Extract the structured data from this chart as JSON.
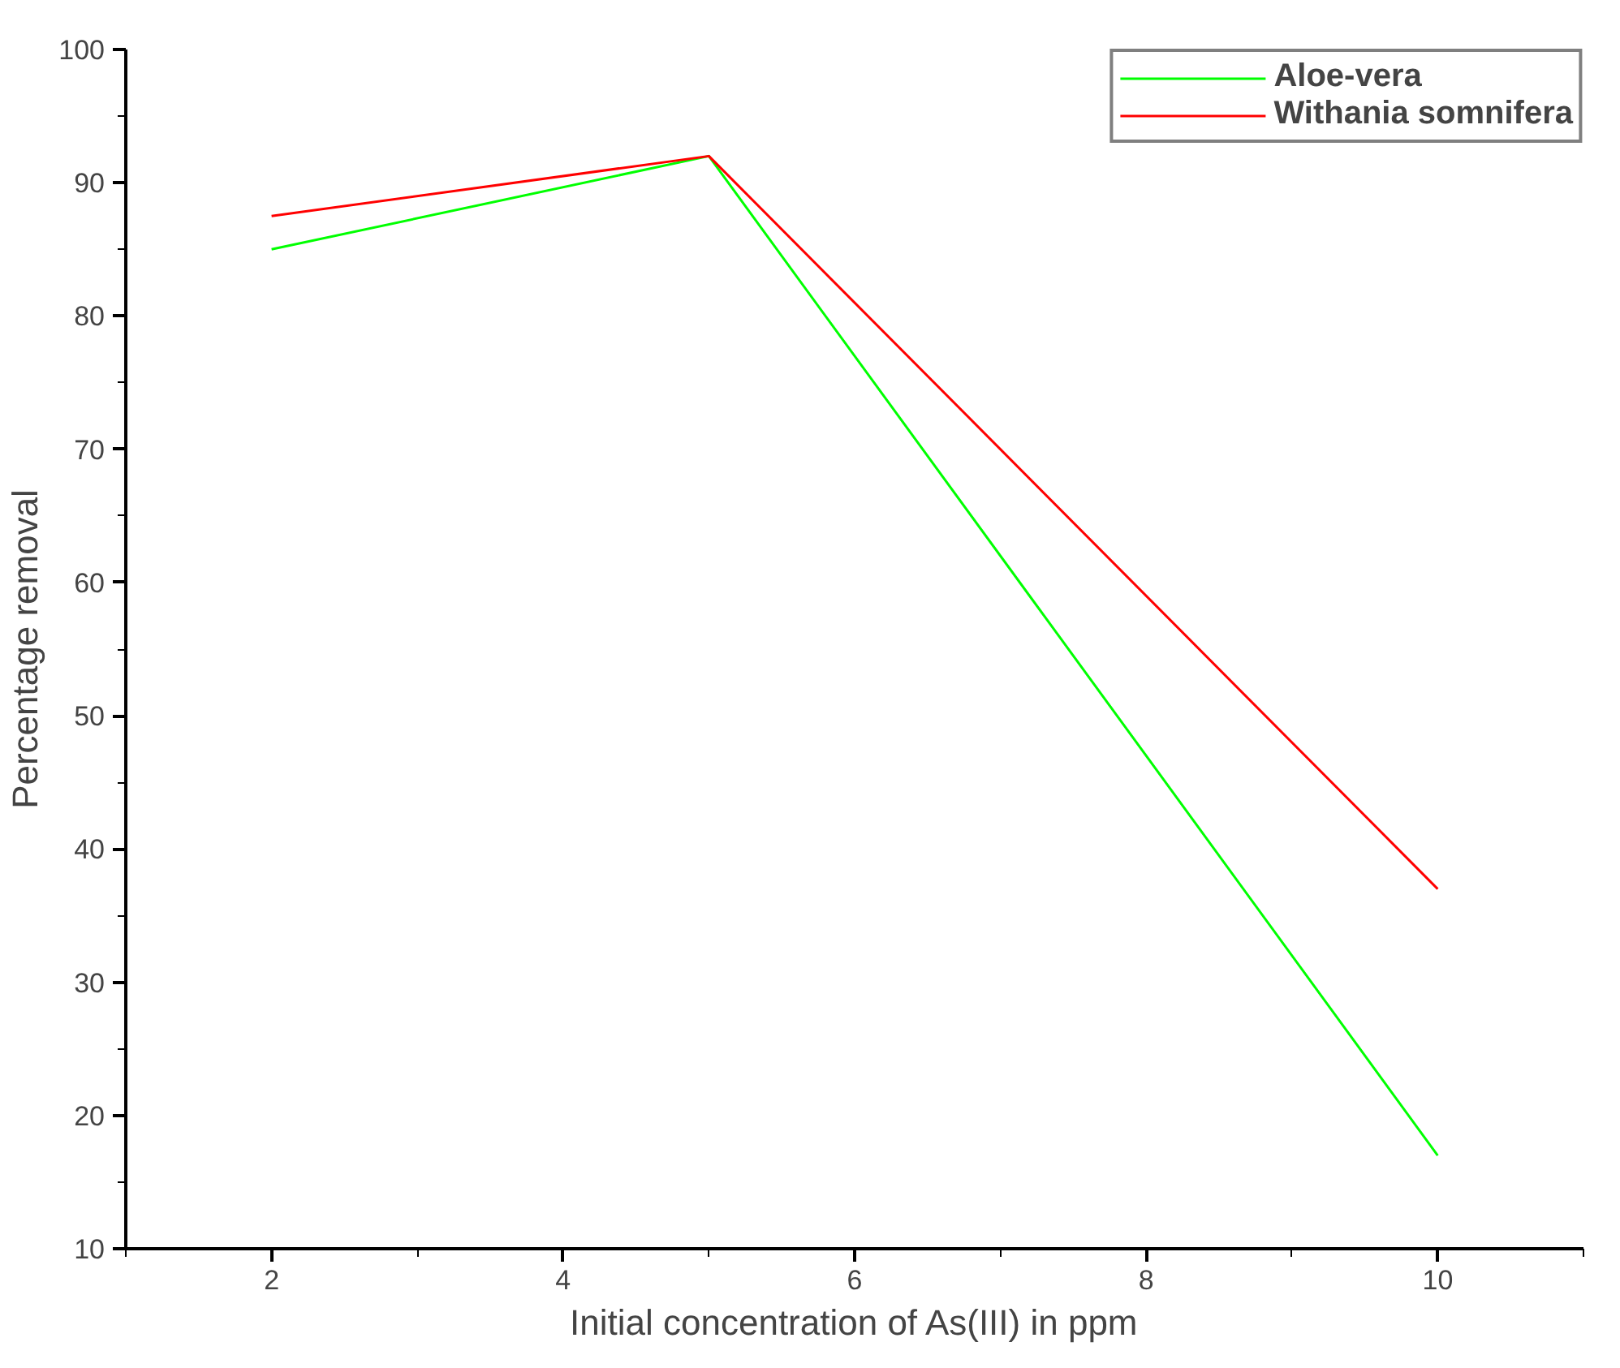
{
  "chart_data": {
    "type": "line",
    "xlabel": "Initial concentration of As(III) in ppm",
    "ylabel": "Percentage removal",
    "x": [
      2,
      5,
      10
    ],
    "series": [
      {
        "name": "Aloe-vera",
        "color": "#00ff00",
        "values": [
          85,
          92,
          17
        ]
      },
      {
        "name": "Withania somnifera",
        "color": "#ff0000",
        "values": [
          87.5,
          92,
          37
        ]
      }
    ],
    "xlim": [
      1,
      11
    ],
    "xticks": [
      2,
      4,
      6,
      8,
      10
    ],
    "ylim": [
      10,
      100
    ],
    "yticks": [
      10,
      20,
      30,
      40,
      50,
      60,
      70,
      80,
      90,
      100
    ],
    "grid": false,
    "legend": "top right",
    "marker": "none",
    "line_style": "solid"
  }
}
